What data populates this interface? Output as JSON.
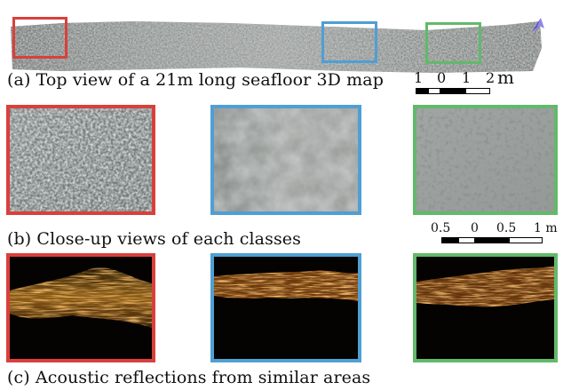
{
  "captions": {
    "a": "(a) Top view of a 21m long seafloor 3D map",
    "b": "(b) Close-up views of each classes",
    "c": "(c) Acoustic reflections from similar areas"
  },
  "scale_top": {
    "ticks": [
      "1",
      "0",
      "1",
      "2"
    ],
    "unit": "m"
  },
  "scale_mid": {
    "ticks": [
      "0.5",
      "0",
      "0.5",
      "1 m"
    ]
  },
  "colors": {
    "class_1": "#d9403c",
    "class_2": "#4f9fd3",
    "class_3": "#62b96a",
    "north_arrow": "#5a4fd6"
  },
  "icons": {
    "north_arrow": "north-arrow-icon"
  }
}
